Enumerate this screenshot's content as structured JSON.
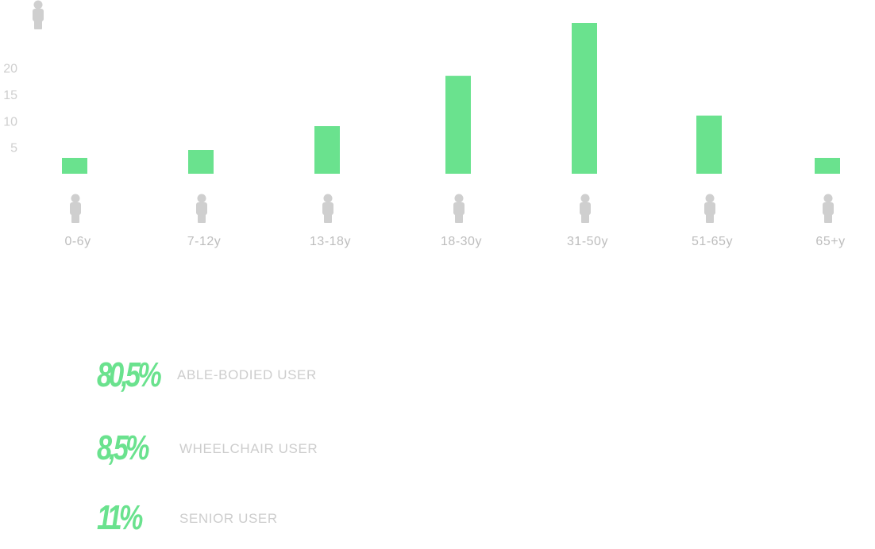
{
  "chart_data": {
    "type": "bar",
    "categories": [
      "0-6y",
      "7-12y",
      "13-18y",
      "18-30y",
      "31-50y",
      "51-65y",
      "65+y"
    ],
    "values": [
      3,
      4.5,
      9,
      18.5,
      28.5,
      11,
      3
    ],
    "yticks": [
      5,
      10,
      15,
      20
    ],
    "ylim": [
      0,
      28.5
    ],
    "y_icon": "person-icon",
    "category_icon": "person-icon",
    "grid": false,
    "colors": {
      "bar": "#6ae28e",
      "icon": "#cfcfcf",
      "text": "#bdbdbd"
    }
  },
  "stats": [
    {
      "percent": "80,5%",
      "label": "ABLE-BODIED USER"
    },
    {
      "percent": "8,5%",
      "label": "WHEELCHAIR USER"
    },
    {
      "percent": "11%",
      "label": "SENIOR USER"
    }
  ]
}
